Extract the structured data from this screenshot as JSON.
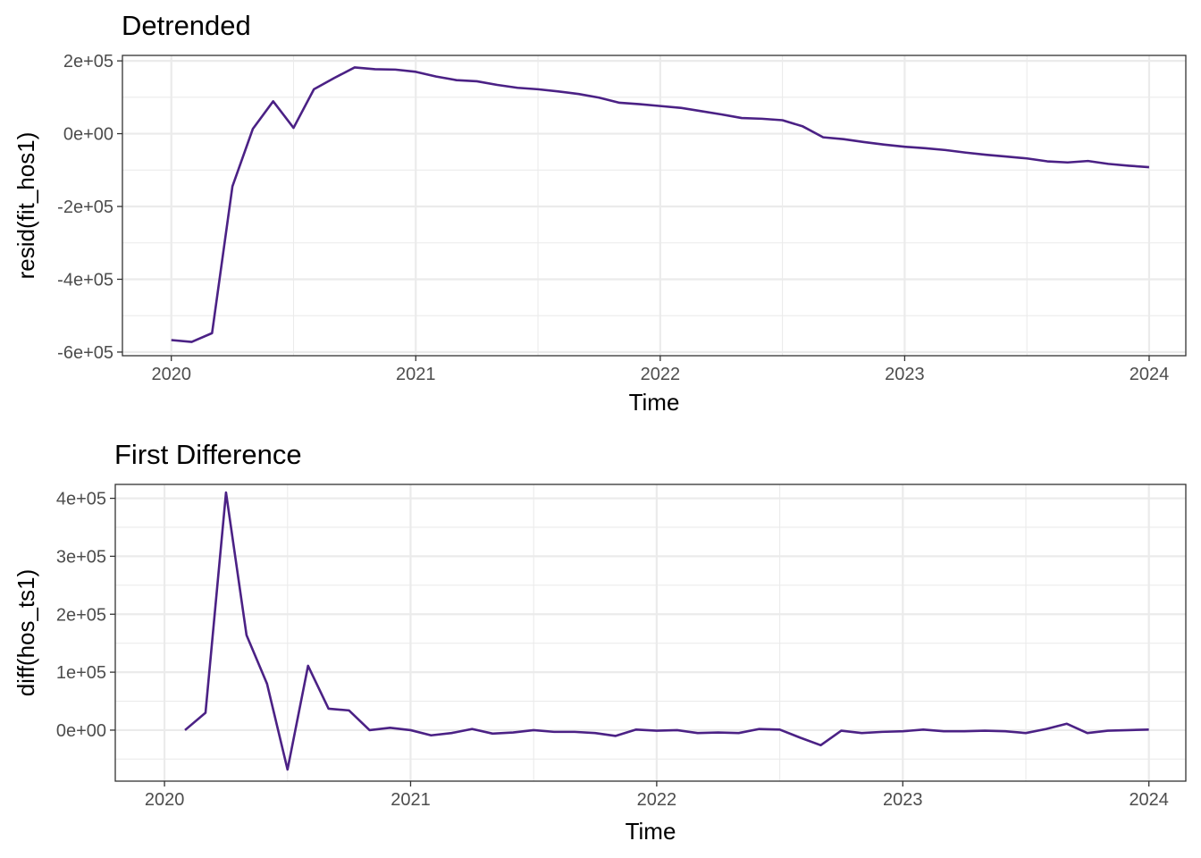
{
  "chart_data": [
    {
      "type": "line",
      "title": "Detrended",
      "xlabel": "Time",
      "ylabel": "resid(fit_hos1)",
      "grid": true,
      "x_start": 2020.0,
      "x_step": 0.08333,
      "xlim": [
        2019.8,
        2024.15
      ],
      "ylim": [
        -610000,
        215000
      ],
      "x_ticks": [
        2020,
        2021,
        2022,
        2023,
        2024
      ],
      "x_tick_labels": [
        "2020",
        "2021",
        "2022",
        "2023",
        "2024"
      ],
      "y_ticks": [
        -600000,
        -400000,
        -200000,
        0,
        200000
      ],
      "y_tick_labels": [
        "-6e+05",
        "-4e+05",
        "-2e+05",
        "0e+00",
        "2e+05"
      ],
      "series": [
        {
          "color": "#4b2185",
          "values": [
            -567000,
            -572000,
            -548000,
            -145000,
            13000,
            89000,
            16000,
            122000,
            153000,
            182000,
            177000,
            176000,
            170000,
            157000,
            147000,
            144000,
            134000,
            126000,
            122000,
            116000,
            109000,
            99000,
            85000,
            81000,
            76000,
            71000,
            62000,
            53000,
            43000,
            41000,
            37000,
            20000,
            -10000,
            -15000,
            -23000,
            -30000,
            -36000,
            -40000,
            -45000,
            -52000,
            -58000,
            -63000,
            -68000,
            -76000,
            -79000,
            -75000,
            -83000,
            -88000,
            -92000
          ]
        }
      ]
    },
    {
      "type": "line",
      "title": "First Difference",
      "xlabel": "Time",
      "ylabel": "diff(hos_ts1)",
      "grid": true,
      "x_start": 2020.0833,
      "x_step": 0.08333,
      "xlim": [
        2019.8,
        2024.15
      ],
      "ylim": [
        -88000,
        424000
      ],
      "x_ticks": [
        2020,
        2021,
        2022,
        2023,
        2024
      ],
      "x_tick_labels": [
        "2020",
        "2021",
        "2022",
        "2023",
        "2024"
      ],
      "y_ticks": [
        0,
        100000,
        200000,
        300000,
        400000
      ],
      "y_tick_labels": [
        "0e+00",
        "1e+05",
        "2e+05",
        "3e+05",
        "4e+05"
      ],
      "series": [
        {
          "color": "#4b2185",
          "values": [
            0,
            30000,
            410000,
            164000,
            80000,
            -68000,
            111000,
            37000,
            34000,
            0,
            4000,
            0,
            -9000,
            -5000,
            2000,
            -6000,
            -4000,
            0,
            -3000,
            -3000,
            -5000,
            -10000,
            1000,
            -1000,
            0,
            -5000,
            -4000,
            -5000,
            2000,
            1000,
            -13000,
            -26000,
            -1000,
            -5000,
            -3000,
            -2000,
            1000,
            -2000,
            -2000,
            -1000,
            -2000,
            -5000,
            2000,
            11000,
            -5000,
            -1000,
            0,
            1000
          ]
        }
      ]
    }
  ]
}
